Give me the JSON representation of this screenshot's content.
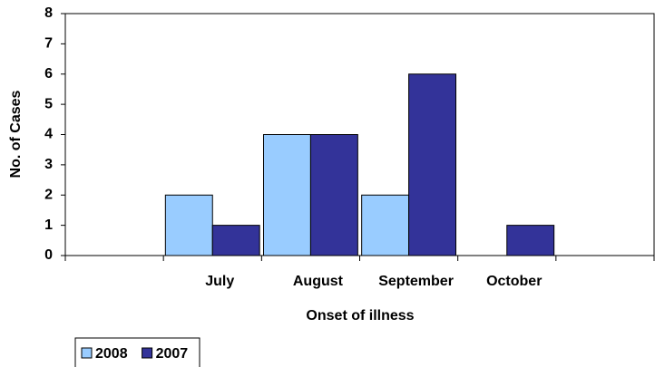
{
  "chart_data": {
    "type": "bar",
    "x_label": "Onset of illness",
    "y_label": "No. of Cases",
    "categories": [
      null,
      "July",
      "August",
      "September",
      "October",
      null
    ],
    "series": [
      {
        "name": "2008",
        "color": "#99ccff",
        "values": [
          null,
          2,
          4,
          2,
          0,
          null
        ]
      },
      {
        "name": "2007",
        "color": "#333399",
        "values": [
          null,
          1,
          4,
          6,
          1,
          null
        ]
      }
    ],
    "ylim": [
      0,
      8
    ],
    "yticks": [
      0,
      1,
      2,
      3,
      4,
      5,
      6,
      7,
      8
    ]
  }
}
